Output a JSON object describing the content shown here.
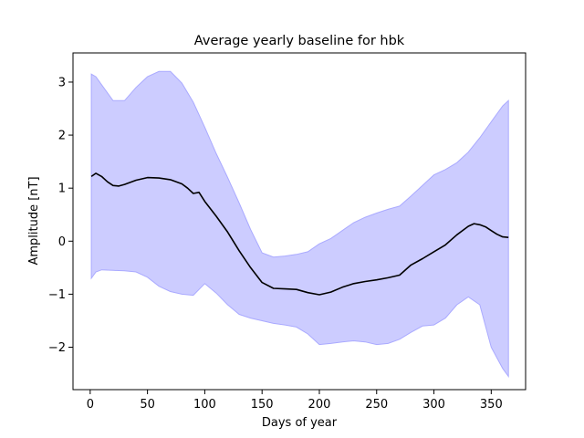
{
  "chart_data": {
    "type": "line",
    "title": "Average yearly baseline for hbk",
    "xlabel": "Days of year",
    "ylabel": "Amplitude [nT]",
    "xlim": [
      -15,
      380
    ],
    "ylim": [
      -2.8,
      3.55
    ],
    "xticks": [
      0,
      50,
      100,
      150,
      200,
      250,
      300,
      350
    ],
    "yticks": [
      -2,
      -1,
      0,
      1,
      2,
      3
    ],
    "ytick_labels": [
      "−2",
      "−1",
      "0",
      "1",
      "2",
      "3"
    ],
    "grid": false,
    "colors": {
      "mean_line": "#000000",
      "band_fill": "#ccccff",
      "band_edge": "#aaaaff"
    },
    "series": [
      {
        "type": "line",
        "x": [
          1,
          5,
          10,
          15,
          20,
          25,
          30,
          40,
          50,
          60,
          70,
          80,
          85,
          90,
          95,
          100,
          110,
          120,
          130,
          140,
          150,
          160,
          170,
          180,
          190,
          200,
          210,
          220,
          230,
          240,
          250,
          260,
          270,
          280,
          290,
          300,
          310,
          320,
          330,
          335,
          340,
          345,
          350,
          355,
          360,
          365
        ],
        "y": [
          1.22,
          1.28,
          1.22,
          1.12,
          1.05,
          1.04,
          1.07,
          1.15,
          1.2,
          1.19,
          1.16,
          1.08,
          1.0,
          0.9,
          0.92,
          0.75,
          0.47,
          0.17,
          -0.18,
          -0.5,
          -0.78,
          -0.89,
          -0.9,
          -0.91,
          -0.97,
          -1.01,
          -0.96,
          -0.87,
          -0.8,
          -0.76,
          -0.73,
          -0.69,
          -0.64,
          -0.45,
          -0.33,
          -0.2,
          -0.07,
          0.12,
          0.28,
          0.33,
          0.31,
          0.27,
          0.2,
          0.13,
          0.08,
          0.07
        ]
      },
      {
        "type": "band",
        "x": [
          1,
          5,
          10,
          20,
          30,
          40,
          50,
          60,
          70,
          80,
          90,
          100,
          110,
          120,
          130,
          140,
          150,
          160,
          170,
          180,
          190,
          200,
          210,
          220,
          230,
          240,
          250,
          260,
          270,
          280,
          290,
          300,
          310,
          320,
          330,
          340,
          350,
          360,
          365
        ],
        "upper": [
          3.15,
          3.1,
          2.95,
          2.65,
          2.65,
          2.9,
          3.1,
          3.2,
          3.2,
          2.98,
          2.62,
          2.15,
          1.65,
          1.2,
          0.72,
          0.22,
          -0.22,
          -0.3,
          -0.28,
          -0.25,
          -0.2,
          -0.05,
          0.05,
          0.2,
          0.35,
          0.45,
          0.53,
          0.6,
          0.66,
          0.85,
          1.05,
          1.25,
          1.35,
          1.48,
          1.68,
          1.95,
          2.25,
          2.55,
          2.65
        ],
        "lower": [
          -0.7,
          -0.58,
          -0.54,
          -0.55,
          -0.56,
          -0.58,
          -0.68,
          -0.85,
          -0.95,
          -1.0,
          -1.02,
          -0.8,
          -0.98,
          -1.2,
          -1.38,
          -1.45,
          -1.5,
          -1.55,
          -1.58,
          -1.62,
          -1.75,
          -1.95,
          -1.93,
          -1.9,
          -1.88,
          -1.9,
          -1.95,
          -1.93,
          -1.85,
          -1.72,
          -1.6,
          -1.58,
          -1.45,
          -1.2,
          -1.05,
          -1.2,
          -2.0,
          -2.4,
          -2.55
        ]
      }
    ]
  }
}
